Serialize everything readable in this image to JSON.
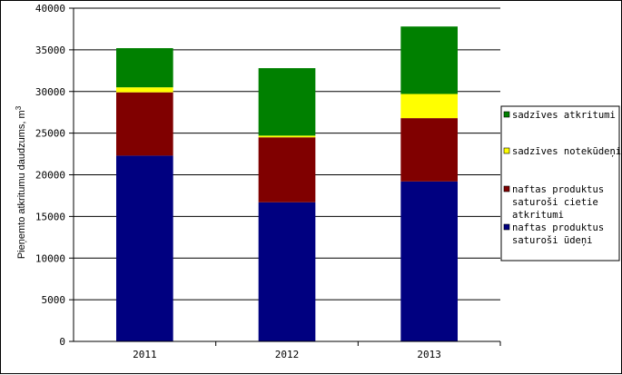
{
  "chart_data": {
    "type": "bar",
    "stacked": true,
    "categories": [
      "2011",
      "2012",
      "2013"
    ],
    "ylabel": "Pieņemto atkritumu daudzums, m",
    "ylabel_superscript": "3",
    "ylim": [
      0,
      40000
    ],
    "yticks": [
      0,
      5000,
      10000,
      15000,
      20000,
      25000,
      30000,
      35000,
      40000
    ],
    "yticks_labels": [
      "0",
      "5000",
      "10000",
      "15000",
      "20000",
      "25000",
      "30000",
      "35000",
      "40000"
    ],
    "grid": true,
    "legend_position": "right",
    "series": [
      {
        "name": "naftas produktus saturoši ūdeņi",
        "color": "#000080",
        "values": [
          22300,
          16700,
          19200
        ]
      },
      {
        "name": "naftas produktus saturoši cietie atkritumi",
        "color": "#800000",
        "values": [
          7600,
          7800,
          7600
        ]
      },
      {
        "name": "sadzīves notekūdeņi",
        "color": "#ffff00",
        "values": [
          600,
          200,
          2900
        ]
      },
      {
        "name": "sadzīves atkritumi",
        "color": "#008000",
        "values": [
          4700,
          8100,
          8100
        ]
      }
    ],
    "legend": [
      {
        "color": "#008000",
        "lines": [
          "sadzīves atkritumi"
        ]
      },
      {
        "color": "#ffff00",
        "lines": [
          "sadzīves notekūdeņi"
        ]
      },
      {
        "color": "#800000",
        "lines": [
          "naftas produktus",
          "saturoši cietie",
          "atkritumi"
        ]
      },
      {
        "color": "#000080",
        "lines": [
          "naftas produktus",
          "saturoši ūdeņi"
        ]
      }
    ]
  }
}
